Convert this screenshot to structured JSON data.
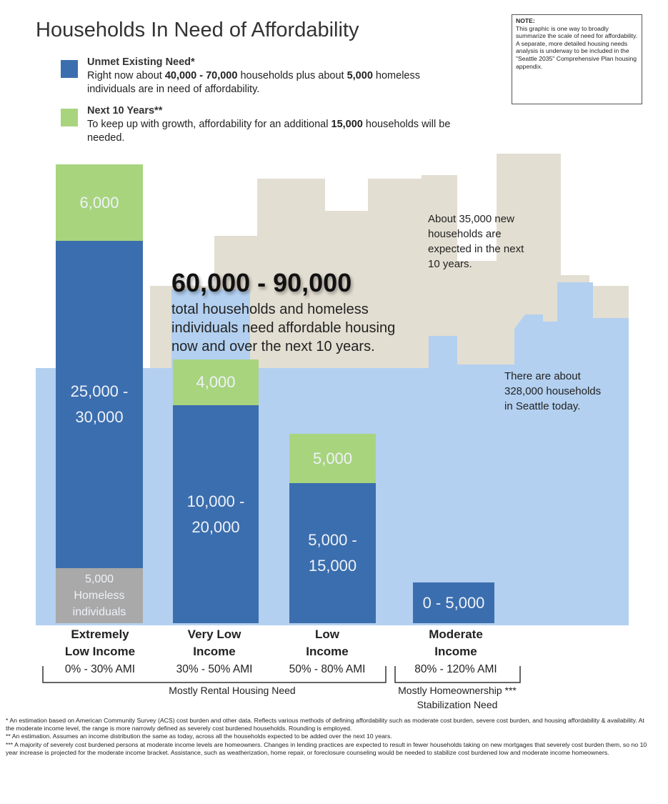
{
  "title": "Households In Need of Affordability",
  "note": {
    "heading": "NOTE:",
    "text": "This graphic is one way to broadly summarize the scale of need for affordability. A separate, more detailed housing needs analysis is underway to be included in the \"Seattle 2035\" Comprehensive Plan housing appendix."
  },
  "legend": [
    {
      "heading": "Unmet Existing Need*",
      "runs": [
        "Right now about ",
        "40,000 - 70,000",
        " households plus about ",
        "5,000",
        " homeless individuals are in need of affordability."
      ]
    },
    {
      "heading": "Next 10 Years**",
      "runs": [
        "To keep up with growth, affordability for an additional ",
        "15,000",
        " households will be needed."
      ]
    }
  ],
  "headline": {
    "figure": "60,000 - 90,000",
    "lines": [
      "total households and homeless",
      "individuals need affordable housing",
      "now and over the next 10 years."
    ]
  },
  "annotations": {
    "growth": [
      "About 35,000 new",
      "households are",
      "expected in the next",
      "10 years."
    ],
    "today": [
      "There are about",
      "328,000 households",
      "in Seattle today."
    ]
  },
  "bars": [
    {
      "category": [
        "Extremely",
        "Low Income"
      ],
      "ami": "0% - 30% AMI",
      "segments": [
        {
          "kind": "next",
          "label": [
            "6,000"
          ]
        },
        {
          "kind": "unmet",
          "label": [
            "25,000 -",
            "30,000"
          ]
        },
        {
          "kind": "homeless",
          "label": [
            "5,000",
            "Homeless",
            "individuals"
          ]
        }
      ]
    },
    {
      "category": [
        "Very Low",
        "Income"
      ],
      "ami": "30% - 50% AMI",
      "segments": [
        {
          "kind": "next",
          "label": [
            "4,000"
          ]
        },
        {
          "kind": "unmet",
          "label": [
            "10,000 -",
            "20,000"
          ]
        }
      ]
    },
    {
      "category": [
        "Low",
        "Income"
      ],
      "ami": "50% - 80% AMI",
      "segments": [
        {
          "kind": "next",
          "label": [
            "5,000"
          ]
        },
        {
          "kind": "unmet",
          "label": [
            "5,000 -",
            "15,000"
          ]
        }
      ]
    },
    {
      "category": [
        "Moderate",
        "Income"
      ],
      "ami": "80% - 120% AMI",
      "segments": [
        {
          "kind": "unmet",
          "label": [
            "0 - 5,000"
          ]
        }
      ]
    }
  ],
  "groups": {
    "rental": [
      "Mostly Rental Housing Need"
    ],
    "ownership": [
      "Mostly Homeownership ***",
      "Stabilization Need"
    ]
  },
  "footnotes": [
    "* An estimation based on American Community Survey (ACS) cost burden and other data. Reflects various methods of defining affordability such as moderate cost burden, severe cost burden, and housing affordability & availability. At the moderate income level, the range is more narrowly defined as severely cost burdened households. Rounding is employed.",
    "** An estimation. Assumes an income distribution the same as today, across all the households expected to be added over the next 10 years.",
    "*** A majority of severely cost burdened persons at moderate income levels are homeowners. Changes in lending practices are expected to result in fewer households taking on new mortgages that severely cost burden them, so no 10 year increase is projected for the moderate income bracket. Assistance, such as weatherization, home repair, or foreclosure counseling would be needed to stabilize cost burdened low and moderate income homeowners."
  ]
}
